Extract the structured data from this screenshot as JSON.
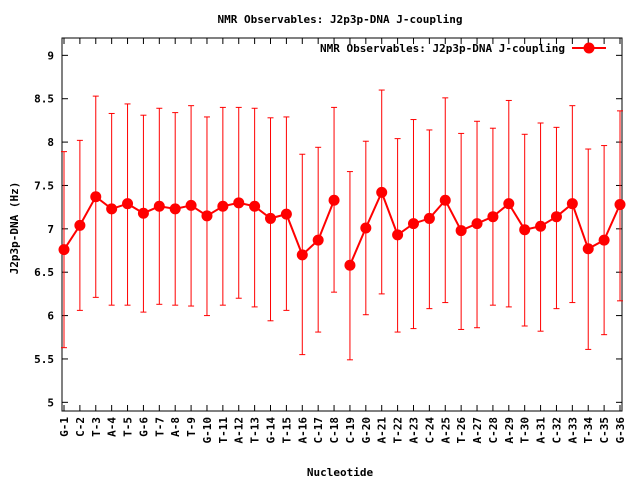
{
  "chart_data": {
    "type": "line",
    "title": "NMR Observables: J2p3p-DNA J-coupling",
    "xlabel": "Nucleotide",
    "ylabel": "J2p3p-DNA (Hz)",
    "ylim": [
      4.9,
      9.2
    ],
    "yticks": [
      "5",
      "5.5",
      "6",
      "6.5",
      "7",
      "7.5",
      "8",
      "8.5",
      "9"
    ],
    "yticks_values": [
      5,
      5.5,
      6,
      6.5,
      7,
      7.5,
      8,
      8.5,
      9
    ],
    "categories": [
      "G-1",
      "C-2",
      "T-3",
      "A-4",
      "T-5",
      "G-6",
      "T-7",
      "A-8",
      "T-9",
      "G-10",
      "T-11",
      "A-12",
      "T-13",
      "G-14",
      "T-15",
      "A-16",
      "C-17",
      "C-18",
      "C-19",
      "G-20",
      "A-21",
      "T-22",
      "A-23",
      "C-24",
      "A-25",
      "T-26",
      "A-27",
      "C-28",
      "A-29",
      "T-30",
      "A-31",
      "C-32",
      "A-33",
      "T-34",
      "C-35",
      "G-36"
    ],
    "series": [
      {
        "name": "NMR Observables: J2p3p-DNA J-coupling",
        "color": "#ff0000",
        "segments": [
          [
            0,
            17
          ],
          [
            18,
            35
          ]
        ],
        "values": [
          6.76,
          7.04,
          7.37,
          7.23,
          7.29,
          7.18,
          7.26,
          7.23,
          7.27,
          7.15,
          7.26,
          7.3,
          7.26,
          7.12,
          7.17,
          6.7,
          6.87,
          7.33,
          6.58,
          7.01,
          7.42,
          6.93,
          7.06,
          7.12,
          7.33,
          6.98,
          7.06,
          7.14,
          7.29,
          6.99,
          7.03,
          7.14,
          7.29,
          6.77,
          6.87,
          7.28
        ],
        "err_low": [
          5.63,
          6.06,
          6.21,
          6.12,
          6.12,
          6.04,
          6.13,
          6.12,
          6.11,
          6.0,
          6.12,
          6.2,
          6.1,
          5.94,
          6.06,
          5.55,
          5.81,
          6.27,
          5.49,
          6.01,
          6.25,
          5.81,
          5.85,
          6.08,
          6.15,
          5.84,
          5.86,
          6.12,
          6.1,
          5.88,
          5.82,
          6.08,
          6.15,
          5.61,
          5.78,
          6.17
        ],
        "err_high": [
          7.89,
          8.02,
          8.53,
          8.33,
          8.44,
          8.31,
          8.39,
          8.34,
          8.42,
          8.29,
          8.4,
          8.4,
          8.39,
          8.28,
          8.29,
          7.86,
          7.94,
          8.4,
          7.66,
          8.01,
          8.6,
          8.04,
          8.26,
          8.14,
          8.51,
          8.1,
          8.24,
          8.16,
          8.48,
          8.09,
          8.22,
          8.17,
          8.42,
          7.92,
          7.96,
          8.36
        ]
      }
    ],
    "grid": false,
    "legend": "top-right"
  }
}
